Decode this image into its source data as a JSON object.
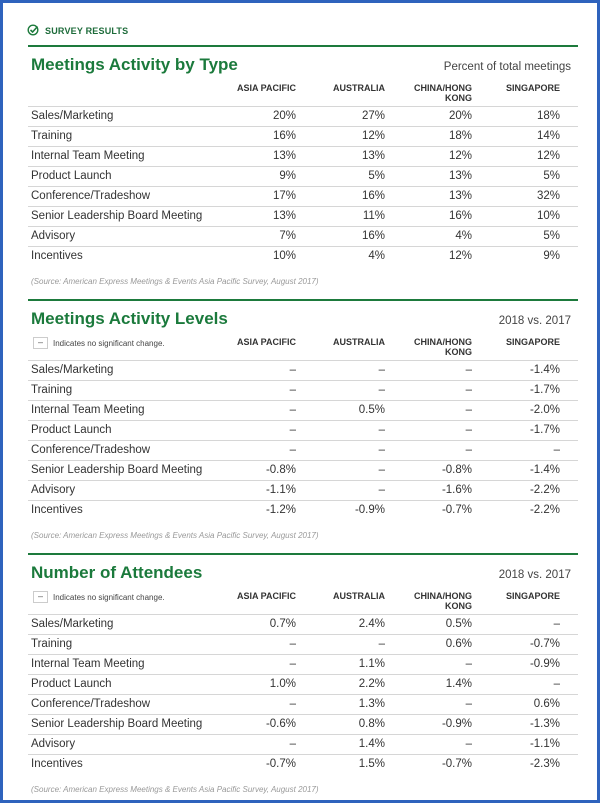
{
  "header": {
    "label": "SURVEY RESULTS"
  },
  "sections": [
    {
      "title": "Meetings Activity by Type",
      "note": "Percent of total meetings",
      "columns": [
        "ASIA PACIFIC",
        "AUSTRALIA",
        "CHINA/HONG KONG",
        "SINGAPORE"
      ],
      "rows": [
        {
          "label": "Sales/Marketing",
          "values": [
            "20%",
            "27%",
            "20%",
            "18%"
          ]
        },
        {
          "label": "Training",
          "values": [
            "16%",
            "12%",
            "18%",
            "14%"
          ]
        },
        {
          "label": "Internal Team Meeting",
          "values": [
            "13%",
            "13%",
            "12%",
            "12%"
          ]
        },
        {
          "label": "Product Launch",
          "values": [
            "9%",
            "5%",
            "13%",
            "5%"
          ]
        },
        {
          "label": "Conference/Tradeshow",
          "values": [
            "17%",
            "16%",
            "13%",
            "32%"
          ]
        },
        {
          "label": "Senior Leadership Board Meeting",
          "values": [
            "13%",
            "11%",
            "16%",
            "10%"
          ]
        },
        {
          "label": "Advisory",
          "values": [
            "7%",
            "16%",
            "4%",
            "5%"
          ]
        },
        {
          "label": "Incentives",
          "values": [
            "10%",
            "4%",
            "12%",
            "9%"
          ]
        }
      ],
      "source": "(Source:  American Express Meetings & Events Asia Pacific Survey, August 2017)"
    },
    {
      "title": "Meetings Activity Levels",
      "note": "2018 vs. 2017",
      "legend": "Indicates no significant change.",
      "columns": [
        "ASIA PACIFIC",
        "AUSTRALIA",
        "CHINA/HONG KONG",
        "SINGAPORE"
      ],
      "rows": [
        {
          "label": "Sales/Marketing",
          "values": [
            "–",
            "–",
            "–",
            "-1.4%"
          ]
        },
        {
          "label": "Training",
          "values": [
            "–",
            "–",
            "–",
            "-1.7%"
          ]
        },
        {
          "label": "Internal Team Meeting",
          "values": [
            "–",
            "0.5%",
            "–",
            "-2.0%"
          ]
        },
        {
          "label": "Product Launch",
          "values": [
            "–",
            "–",
            "–",
            "-1.7%"
          ]
        },
        {
          "label": "Conference/Tradeshow",
          "values": [
            "–",
            "–",
            "–",
            "–"
          ]
        },
        {
          "label": "Senior Leadership Board Meeting",
          "values": [
            "-0.8%",
            "–",
            "-0.8%",
            "-1.4%"
          ]
        },
        {
          "label": "Advisory",
          "values": [
            "-1.1%",
            "–",
            "-1.6%",
            "-2.2%"
          ]
        },
        {
          "label": "Incentives",
          "values": [
            "-1.2%",
            "-0.9%",
            "-0.7%",
            "-2.2%"
          ]
        }
      ],
      "source": "(Source:  American Express Meetings & Events Asia Pacific Survey, August 2017)"
    },
    {
      "title": "Number of Attendees",
      "note": "2018 vs. 2017",
      "legend": "Indicates no significant change.",
      "columns": [
        "ASIA PACIFIC",
        "AUSTRALIA",
        "CHINA/HONG KONG",
        "SINGAPORE"
      ],
      "rows": [
        {
          "label": "Sales/Marketing",
          "values": [
            "0.7%",
            "2.4%",
            "0.5%",
            "–"
          ]
        },
        {
          "label": "Training",
          "values": [
            "–",
            "–",
            "0.6%",
            "-0.7%"
          ]
        },
        {
          "label": "Internal Team Meeting",
          "values": [
            "–",
            "1.1%",
            "–",
            "-0.9%"
          ]
        },
        {
          "label": "Product Launch",
          "values": [
            "1.0%",
            "2.2%",
            "1.4%",
            "–"
          ]
        },
        {
          "label": "Conference/Tradeshow",
          "values": [
            "–",
            "1.3%",
            "–",
            "0.6%"
          ]
        },
        {
          "label": "Senior Leadership Board Meeting",
          "values": [
            "-0.6%",
            "0.8%",
            "-0.9%",
            "-1.3%"
          ]
        },
        {
          "label": "Advisory",
          "values": [
            "–",
            "1.4%",
            "–",
            "-1.1%"
          ]
        },
        {
          "label": "Incentives",
          "values": [
            "-0.7%",
            "1.5%",
            "-0.7%",
            "-2.3%"
          ]
        }
      ],
      "source": "(Source:  American Express Meetings & Events Asia Pacific Survey, August 2017)"
    }
  ]
}
